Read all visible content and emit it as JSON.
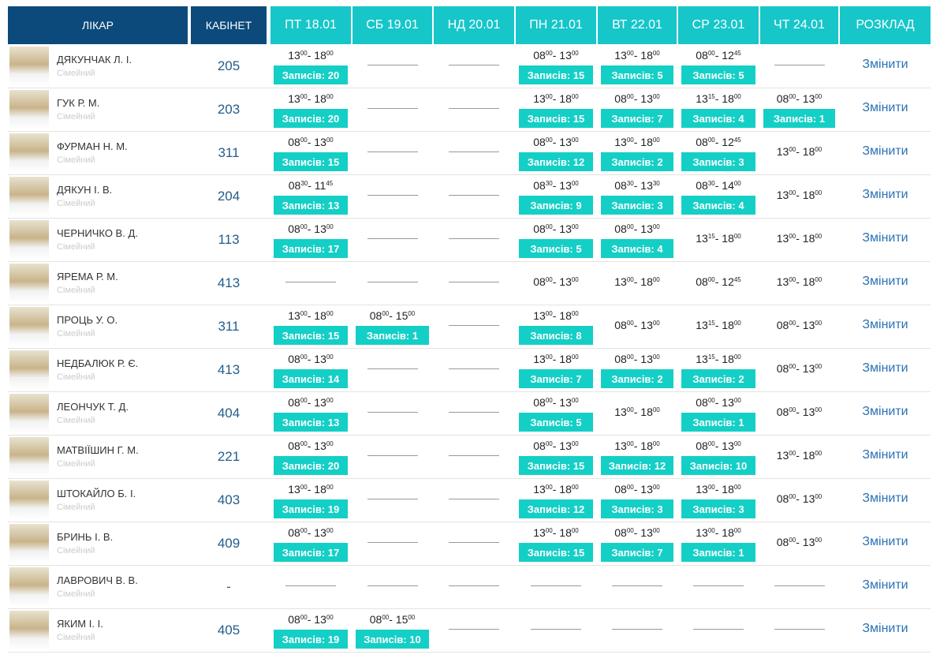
{
  "header": {
    "doctor": "ЛІКАР",
    "cabinet": "КАБІНЕТ",
    "days": [
      "ПТ 18.01",
      "СБ 19.01",
      "НД 20.01",
      "ПН 21.01",
      "ВТ 22.01",
      "СР 23.01",
      "ЧТ 24.01"
    ],
    "schedule": "РОЗКЛАД"
  },
  "action": "Змінити",
  "time_sep": "-",
  "rows": [
    {
      "name": "ДЯКУНЧАК Л. І.",
      "role": "Сімейний",
      "cabinet": "205",
      "days": [
        {
          "t": [
            "13",
            "00",
            "18",
            "00"
          ],
          "n": "Записів: 20"
        },
        null,
        null,
        {
          "t": [
            "08",
            "00",
            "13",
            "00"
          ],
          "n": "Записів: 15"
        },
        {
          "t": [
            "13",
            "00",
            "18",
            "00"
          ],
          "n": "Записів: 5"
        },
        {
          "t": [
            "08",
            "00",
            "12",
            "45"
          ],
          "n": "Записів: 5"
        },
        null
      ]
    },
    {
      "name": "ГУК Р. М.",
      "role": "Сімейний",
      "cabinet": "203",
      "days": [
        {
          "t": [
            "13",
            "00",
            "18",
            "00"
          ],
          "n": "Записів: 20"
        },
        null,
        null,
        {
          "t": [
            "13",
            "00",
            "18",
            "00"
          ],
          "n": "Записів: 15"
        },
        {
          "t": [
            "08",
            "00",
            "13",
            "00"
          ],
          "n": "Записів: 7"
        },
        {
          "t": [
            "13",
            "15",
            "18",
            "00"
          ],
          "n": "Записів: 4"
        },
        {
          "t": [
            "08",
            "00",
            "13",
            "00"
          ],
          "n": "Записів: 1"
        }
      ]
    },
    {
      "name": "ФУРМАН Н. М.",
      "role": "Сімейний",
      "cabinet": "311",
      "days": [
        {
          "t": [
            "08",
            "00",
            "13",
            "00"
          ],
          "n": "Записів: 15"
        },
        null,
        null,
        {
          "t": [
            "08",
            "00",
            "13",
            "00"
          ],
          "n": "Записів: 12"
        },
        {
          "t": [
            "13",
            "00",
            "18",
            "00"
          ],
          "n": "Записів: 2"
        },
        {
          "t": [
            "08",
            "00",
            "12",
            "45"
          ],
          "n": "Записів: 3"
        },
        {
          "t": [
            "13",
            "00",
            "18",
            "00"
          ]
        }
      ]
    },
    {
      "name": "ДЯКУН І. В.",
      "role": "Сімейний",
      "cabinet": "204",
      "days": [
        {
          "t": [
            "08",
            "30",
            "11",
            "45"
          ],
          "n": "Записів: 13"
        },
        null,
        null,
        {
          "t": [
            "08",
            "30",
            "13",
            "00"
          ],
          "n": "Записів: 9"
        },
        {
          "t": [
            "08",
            "30",
            "13",
            "30"
          ],
          "n": "Записів: 3"
        },
        {
          "t": [
            "08",
            "30",
            "14",
            "00"
          ],
          "n": "Записів: 4"
        },
        {
          "t": [
            "13",
            "00",
            "18",
            "00"
          ]
        }
      ]
    },
    {
      "name": "ЧЕРНИЧКО В. Д.",
      "role": "Сімейний",
      "cabinet": "113",
      "days": [
        {
          "t": [
            "08",
            "00",
            "13",
            "00"
          ],
          "n": "Записів: 17"
        },
        null,
        null,
        {
          "t": [
            "08",
            "00",
            "13",
            "00"
          ],
          "n": "Записів: 5"
        },
        {
          "t": [
            "08",
            "00",
            "13",
            "00"
          ],
          "n": "Записів: 4"
        },
        {
          "t": [
            "13",
            "15",
            "18",
            "00"
          ]
        },
        {
          "t": [
            "13",
            "00",
            "18",
            "00"
          ]
        }
      ]
    },
    {
      "name": "ЯРЕМА Р. М.",
      "role": "Сімейний",
      "cabinet": "413",
      "days": [
        null,
        null,
        null,
        {
          "t": [
            "08",
            "00",
            "13",
            "00"
          ]
        },
        {
          "t": [
            "13",
            "00",
            "18",
            "00"
          ]
        },
        {
          "t": [
            "08",
            "00",
            "12",
            "45"
          ]
        },
        {
          "t": [
            "13",
            "00",
            "18",
            "00"
          ]
        }
      ]
    },
    {
      "name": "ПРОЦЬ У. О.",
      "role": "Сімейний",
      "cabinet": "311",
      "days": [
        {
          "t": [
            "13",
            "00",
            "18",
            "00"
          ],
          "n": "Записів: 15"
        },
        {
          "t": [
            "08",
            "00",
            "15",
            "00"
          ],
          "n": "Записів: 1"
        },
        null,
        {
          "t": [
            "13",
            "00",
            "18",
            "00"
          ],
          "n": "Записів: 8"
        },
        {
          "t": [
            "08",
            "00",
            "13",
            "00"
          ]
        },
        {
          "t": [
            "13",
            "15",
            "18",
            "00"
          ]
        },
        {
          "t": [
            "08",
            "00",
            "13",
            "00"
          ]
        }
      ]
    },
    {
      "name": "НЕДБАЛЮК Р. Є.",
      "role": "Сімейний",
      "cabinet": "413",
      "days": [
        {
          "t": [
            "08",
            "00",
            "13",
            "00"
          ],
          "n": "Записів: 14"
        },
        null,
        null,
        {
          "t": [
            "13",
            "00",
            "18",
            "00"
          ],
          "n": "Записів: 7"
        },
        {
          "t": [
            "08",
            "00",
            "13",
            "00"
          ],
          "n": "Записів: 2"
        },
        {
          "t": [
            "13",
            "15",
            "18",
            "00"
          ],
          "n": "Записів: 2"
        },
        {
          "t": [
            "08",
            "00",
            "13",
            "00"
          ]
        }
      ]
    },
    {
      "name": "ЛЕОНЧУК Т. Д.",
      "role": "Сімейний",
      "cabinet": "404",
      "days": [
        {
          "t": [
            "08",
            "00",
            "13",
            "00"
          ],
          "n": "Записів: 13"
        },
        null,
        null,
        {
          "t": [
            "08",
            "00",
            "13",
            "00"
          ],
          "n": "Записів: 5"
        },
        {
          "t": [
            "13",
            "00",
            "18",
            "00"
          ]
        },
        {
          "t": [
            "08",
            "00",
            "13",
            "00"
          ],
          "n": "Записів: 1"
        },
        {
          "t": [
            "08",
            "00",
            "13",
            "00"
          ]
        }
      ]
    },
    {
      "name": "МАТВІЇШИН Г. М.",
      "role": "Сімейний",
      "cabinet": "221",
      "days": [
        {
          "t": [
            "08",
            "00",
            "13",
            "00"
          ],
          "n": "Записів: 20"
        },
        null,
        null,
        {
          "t": [
            "08",
            "00",
            "13",
            "00"
          ],
          "n": "Записів: 15"
        },
        {
          "t": [
            "13",
            "00",
            "18",
            "00"
          ],
          "n": "Записів: 12"
        },
        {
          "t": [
            "08",
            "00",
            "13",
            "00"
          ],
          "n": "Записів: 10"
        },
        {
          "t": [
            "13",
            "00",
            "18",
            "00"
          ]
        }
      ]
    },
    {
      "name": "ШТОКАЙЛО Б. І.",
      "role": "Сімейний",
      "cabinet": "403",
      "days": [
        {
          "t": [
            "13",
            "00",
            "18",
            "00"
          ],
          "n": "Записів: 19"
        },
        null,
        null,
        {
          "t": [
            "13",
            "00",
            "18",
            "00"
          ],
          "n": "Записів: 12"
        },
        {
          "t": [
            "08",
            "00",
            "13",
            "00"
          ],
          "n": "Записів: 3"
        },
        {
          "t": [
            "13",
            "00",
            "18",
            "00"
          ],
          "n": "Записів: 3"
        },
        {
          "t": [
            "08",
            "00",
            "13",
            "00"
          ]
        }
      ]
    },
    {
      "name": "БРИНЬ І. В.",
      "role": "Сімейний",
      "cabinet": "409",
      "days": [
        {
          "t": [
            "08",
            "00",
            "13",
            "00"
          ],
          "n": "Записів: 17"
        },
        null,
        null,
        {
          "t": [
            "13",
            "00",
            "18",
            "00"
          ],
          "n": "Записів: 15"
        },
        {
          "t": [
            "08",
            "00",
            "13",
            "00"
          ],
          "n": "Записів: 7"
        },
        {
          "t": [
            "13",
            "00",
            "18",
            "00"
          ],
          "n": "Записів: 1"
        },
        {
          "t": [
            "08",
            "00",
            "13",
            "00"
          ]
        }
      ]
    },
    {
      "name": "ЛАВРОВИЧ В. В.",
      "role": "Сімейний",
      "cabinet": "-",
      "days": [
        null,
        null,
        null,
        null,
        null,
        null,
        null
      ]
    },
    {
      "name": "ЯКИМ І. І.",
      "role": "Сімейний",
      "cabinet": "405",
      "days": [
        {
          "t": [
            "08",
            "00",
            "13",
            "00"
          ],
          "n": "Записів: 19"
        },
        {
          "t": [
            "08",
            "00",
            "15",
            "00"
          ],
          "n": "Записів: 10"
        },
        null,
        null,
        null,
        null,
        null
      ]
    }
  ]
}
